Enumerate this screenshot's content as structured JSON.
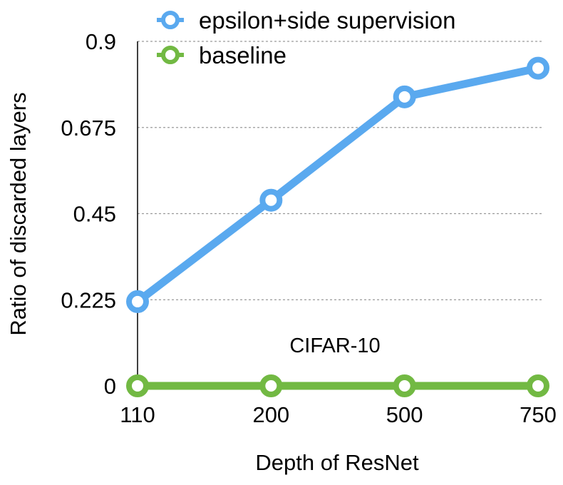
{
  "chart_data": {
    "type": "line",
    "categories": [
      "110",
      "200",
      "500",
      "750"
    ],
    "series": [
      {
        "name": "epsilon+side supervision",
        "values": [
          0.22,
          0.485,
          0.755,
          0.83
        ],
        "color": "#5aa9ef"
      },
      {
        "name": "baseline",
        "values": [
          0,
          0,
          0,
          0
        ],
        "color": "#72b943"
      }
    ],
    "xlabel": "Depth of  ResNet",
    "ylabel": "Ratio of discarded layers",
    "ylim": [
      0,
      0.9
    ],
    "yticks": [
      "0",
      "0.225",
      "0.45",
      "0.675",
      "0.9"
    ],
    "annotation": "CIFAR-10",
    "grid": true,
    "legend_position": "top"
  }
}
